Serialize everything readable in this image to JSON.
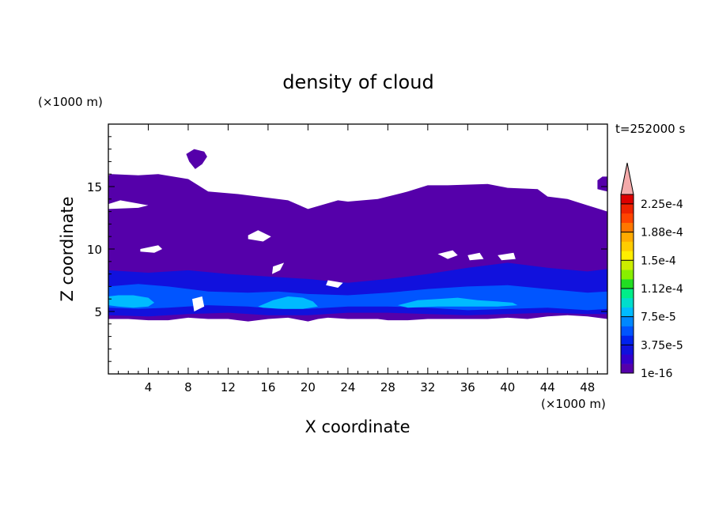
{
  "chart_data": {
    "type": "heatmap",
    "title": "density of cloud",
    "xlabel": "X coordinate",
    "ylabel": "Z coordinate",
    "x_unit": "(×1000 m)",
    "y_unit": "(×1000 m)",
    "time_label": "t=252000 s",
    "xlim": [
      0,
      50
    ],
    "ylim": [
      0,
      20
    ],
    "x_ticks": [
      4,
      8,
      12,
      16,
      20,
      24,
      28,
      32,
      36,
      40,
      44,
      48
    ],
    "y_ticks": [
      5,
      10,
      15
    ],
    "colorbar": {
      "labels": [
        "1e-16",
        "3.75e-5",
        "7.5e-5",
        "1.12e-4",
        "1.5e-4",
        "1.88e-4",
        "2.25e-4"
      ],
      "colors": [
        "#5500aa",
        "#3300cc",
        "#1111dd",
        "#0022ee",
        "#0055ff",
        "#0088ff",
        "#00bbff",
        "#00ddcc",
        "#00ee88",
        "#22dd22",
        "#88ee00",
        "#ccee00",
        "#ffee00",
        "#ffcc00",
        "#ffaa00",
        "#ff7700",
        "#ff4400",
        "#ee2200",
        "#dd0000"
      ],
      "extend_color": "#f4aaaa"
    },
    "regions": [
      {
        "level": 0,
        "label": "upper cloud deck",
        "x": [
          0,
          0.3,
          3,
          5,
          8,
          10,
          13,
          18,
          20,
          23,
          24,
          27,
          30,
          32,
          34,
          38,
          40,
          43,
          44,
          46,
          48,
          50,
          50,
          48,
          46,
          44,
          42,
          40,
          38,
          34,
          32,
          30,
          28,
          27,
          26,
          24,
          22,
          21,
          20,
          18,
          16,
          14,
          13,
          12,
          10,
          8,
          6,
          4,
          2,
          0
        ],
        "z": [
          15.9,
          16.0,
          15.9,
          16.0,
          15.6,
          14.6,
          14.4,
          13.9,
          13.2,
          13.9,
          13.8,
          14.0,
          14.6,
          15.1,
          15.1,
          15.2,
          14.9,
          14.8,
          14.2,
          14.0,
          13.5,
          13.0,
          4.4,
          4.6,
          4.7,
          4.6,
          4.4,
          4.5,
          4.4,
          4.4,
          4.4,
          4.3,
          4.3,
          4.4,
          4.4,
          4.4,
          4.5,
          4.4,
          4.2,
          4.5,
          4.4,
          4.2,
          4.3,
          4.4,
          4.4,
          4.5,
          4.3,
          4.3,
          4.4,
          4.4
        ]
      },
      {
        "level": 0,
        "label": "small upper cloud",
        "x": [
          7.8,
          8.6,
          9.6,
          9.9,
          9.4,
          8.7,
          8.1,
          7.8
        ],
        "z": [
          17.6,
          18.0,
          17.8,
          17.4,
          16.8,
          16.4,
          17.0,
          17.6
        ]
      },
      {
        "level": 0,
        "label": "right edge cell",
        "x": [
          49.0,
          49.5,
          50.0,
          50.0,
          49.0
        ],
        "z": [
          15.5,
          15.8,
          15.8,
          14.6,
          14.8
        ]
      },
      {
        "level": 2,
        "label": "dense band",
        "x": [
          0,
          4,
          8,
          12,
          16,
          20,
          24,
          28,
          32,
          36,
          40,
          44,
          48,
          50,
          50,
          48,
          44,
          40,
          36,
          32,
          28,
          24,
          20,
          16,
          12,
          8,
          4,
          0
        ],
        "z": [
          8.3,
          8.1,
          8.3,
          8.0,
          7.8,
          7.6,
          7.3,
          7.6,
          8.0,
          8.5,
          8.9,
          8.5,
          8.2,
          8.4,
          4.8,
          4.8,
          4.9,
          4.8,
          4.7,
          4.8,
          4.9,
          4.9,
          4.7,
          4.7,
          4.9,
          4.8,
          4.6,
          4.7
        ]
      },
      {
        "level": 4,
        "label": "core band",
        "x": [
          0,
          3,
          6,
          10,
          14,
          17,
          20,
          24,
          28,
          32,
          36,
          40,
          44,
          48,
          50,
          50,
          48,
          44,
          40,
          36,
          32,
          28,
          24,
          20,
          17,
          14,
          10,
          6,
          3,
          0
        ],
        "z": [
          7.0,
          7.2,
          7.0,
          6.6,
          6.5,
          6.6,
          6.4,
          6.3,
          6.5,
          6.8,
          7.0,
          7.1,
          6.8,
          6.5,
          6.6,
          5.2,
          5.1,
          5.3,
          5.2,
          5.1,
          5.3,
          5.4,
          5.4,
          5.2,
          5.2,
          5.4,
          5.5,
          5.3,
          5.2,
          5.3
        ]
      },
      {
        "level": 6,
        "label": "core left",
        "x": [
          0,
          1.0,
          2.5,
          4.0,
          4.6,
          4.0,
          2.5,
          1.0,
          0
        ],
        "z": [
          6.2,
          6.3,
          6.3,
          6.1,
          5.7,
          5.4,
          5.3,
          5.4,
          5.5
        ]
      },
      {
        "level": 6,
        "label": "core mid",
        "x": [
          15.0,
          16.5,
          18.0,
          19.5,
          20.5,
          21.0,
          19.5,
          17.5,
          15.5,
          15.0
        ],
        "z": [
          5.4,
          5.9,
          6.2,
          6.1,
          5.8,
          5.4,
          5.2,
          5.2,
          5.3,
          5.4
        ]
      },
      {
        "level": 6,
        "label": "core right",
        "x": [
          29.0,
          31.0,
          33.0,
          35.0,
          37.0,
          39.0,
          40.5,
          41.0,
          39.0,
          36.0,
          33.0,
          30.0,
          29.0
        ],
        "z": [
          5.5,
          5.9,
          6.0,
          6.1,
          5.9,
          5.8,
          5.7,
          5.5,
          5.4,
          5.4,
          5.4,
          5.3,
          5.5
        ]
      }
    ],
    "gaps": [
      {
        "x": [
          0,
          1.2,
          4.0,
          3.0,
          0
        ],
        "z": [
          13.6,
          13.9,
          13.5,
          13.3,
          13.2
        ]
      },
      {
        "x": [
          3.2,
          5.0,
          5.4,
          4.6,
          3.2
        ],
        "z": [
          10.0,
          10.3,
          10.0,
          9.7,
          9.8
        ]
      },
      {
        "x": [
          14.0,
          15.0,
          16.3,
          15.5,
          14.0
        ],
        "z": [
          11.1,
          11.5,
          11.0,
          10.6,
          10.8
        ]
      },
      {
        "x": [
          16.5,
          17.6,
          17.2,
          16.4,
          16.5
        ],
        "z": [
          8.6,
          8.9,
          8.3,
          8.0,
          8.6
        ]
      },
      {
        "x": [
          33.0,
          34.5,
          35.0,
          34.0,
          33.0
        ],
        "z": [
          9.6,
          9.9,
          9.5,
          9.2,
          9.6
        ]
      },
      {
        "x": [
          36.0,
          37.2,
          37.6,
          36.2,
          36.0
        ],
        "z": [
          9.5,
          9.7,
          9.2,
          9.1,
          9.5
        ]
      },
      {
        "x": [
          39.0,
          40.6,
          40.8,
          39.4,
          39.0
        ],
        "z": [
          9.5,
          9.7,
          9.2,
          9.1,
          9.5
        ]
      },
      {
        "x": [
          22.0,
          23.5,
          23.0,
          21.8,
          22.0
        ],
        "z": [
          7.5,
          7.3,
          6.9,
          7.1,
          7.5
        ]
      },
      {
        "x": [
          8.4,
          9.4,
          9.6,
          8.6,
          8.4
        ],
        "z": [
          6.0,
          6.2,
          5.4,
          5.0,
          6.0
        ]
      }
    ]
  }
}
